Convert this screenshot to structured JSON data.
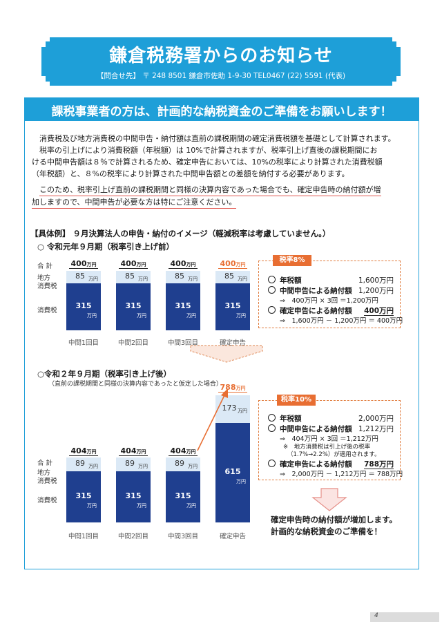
{
  "header": {
    "title": "鎌倉税務署からのお知らせ",
    "contact_label": "【問合せ先】",
    "contact_text": "〒 248 8501 鎌倉市佐助 1-9-30 TEL0467 (22) 5591 (代表)"
  },
  "section_title": "課税事業者の方は、計画的な納税資金のご準備をお願いします！",
  "paragraphs": {
    "p1": "消費税及び地方消費税の中間申告・納付額は直前の課税期間の確定消費税額を基礎として計算されます。",
    "p2a": "税率の引上げにより消費税額（年税額）は 10%で計算されますが、税率引上げ直後の課税期間にお",
    "p2b": "ける中間申告額は８％で計算されるため、確定申告においては、10%の税率により計算された消費税額",
    "p2c": "（年税額）と、８%の税率により計算された中間申告額との差額を納付する必要があります。",
    "p3a": "このため、税率引上げ直前の課税期間と同様の決算内容であった場合でも、確定申告時の納付額が増",
    "p3b": "加しますので、中間申告が必要な方は特にご注意ください。"
  },
  "example_heading": "【具体例】 ９月決算法人の申告・納付のイメージ（軽減税率は考慮していません。）",
  "labels": {
    "total": "合 計",
    "local_a": "地方",
    "local_b": "消費税",
    "consumption": "消費税",
    "man_yen": "万円"
  },
  "chart_data": [
    {
      "type": "bar",
      "title": "○ 令和元年９月期（税率引き上げ前）",
      "categories": [
        "中間1回目",
        "中間2回目",
        "中間3回目",
        "確定申告"
      ],
      "series": [
        {
          "name": "消費税",
          "values": [
            315,
            315,
            315,
            315
          ]
        },
        {
          "name": "地方消費税",
          "values": [
            85,
            85,
            85,
            85
          ]
        }
      ],
      "totals": [
        400,
        400,
        400,
        400
      ],
      "colors": {
        "top": "#dbe9f6",
        "bottom": "#1f3f8f",
        "highlight_total": "#e86e32"
      }
    },
    {
      "type": "bar",
      "title": "○令和２年９月期（税率引き上げ後）",
      "subtitle": "（直前の課税期間と同様の決算内容であったと仮定した場合）",
      "categories": [
        "中間1回目",
        "中間2回目",
        "中間3回目",
        "確定申告"
      ],
      "series": [
        {
          "name": "消費税",
          "values": [
            315,
            315,
            315,
            615
          ]
        },
        {
          "name": "地方消費税",
          "values": [
            89,
            89,
            89,
            173
          ]
        }
      ],
      "totals": [
        404,
        404,
        404,
        788
      ],
      "colors": {
        "top": "#dbe9f6",
        "bottom": "#1f3f8f",
        "highlight_total": "#e86e32"
      }
    }
  ],
  "calc8": {
    "tag": "税率8%",
    "l1": "年税額",
    "v1": "1,600万円",
    "l2": "中間申告による納付額",
    "v2": "1,200万円",
    "f2": "⇒　400万円 × 3回 ＝1,200万円",
    "l3": "確定申告による納付額",
    "v3": "400万円",
    "f3": "⇒　1,600万円 － 1,200万円 ＝ 400万円"
  },
  "calc10": {
    "tag": "税率10%",
    "l1": "年税額",
    "v1": "2,000万円",
    "l2": "中間申告による納付額",
    "v2": "1,212万円",
    "f2": "⇒　404万円 × 3回 ＝1,212万円",
    "n1": "※　地方消費税は引上げ後の税率",
    "n2": "（1.7%→2.2%）が適用されます。",
    "l3": "確定申告による納付額",
    "v3": "788万円",
    "f3": "⇒　2,000万円 － 1,212万円 ＝ 788万円"
  },
  "closing": {
    "line1": "確定申告時の納付額が増加します。",
    "line2": "計画的な納税資金のご準備を！"
  },
  "page_number": "4"
}
